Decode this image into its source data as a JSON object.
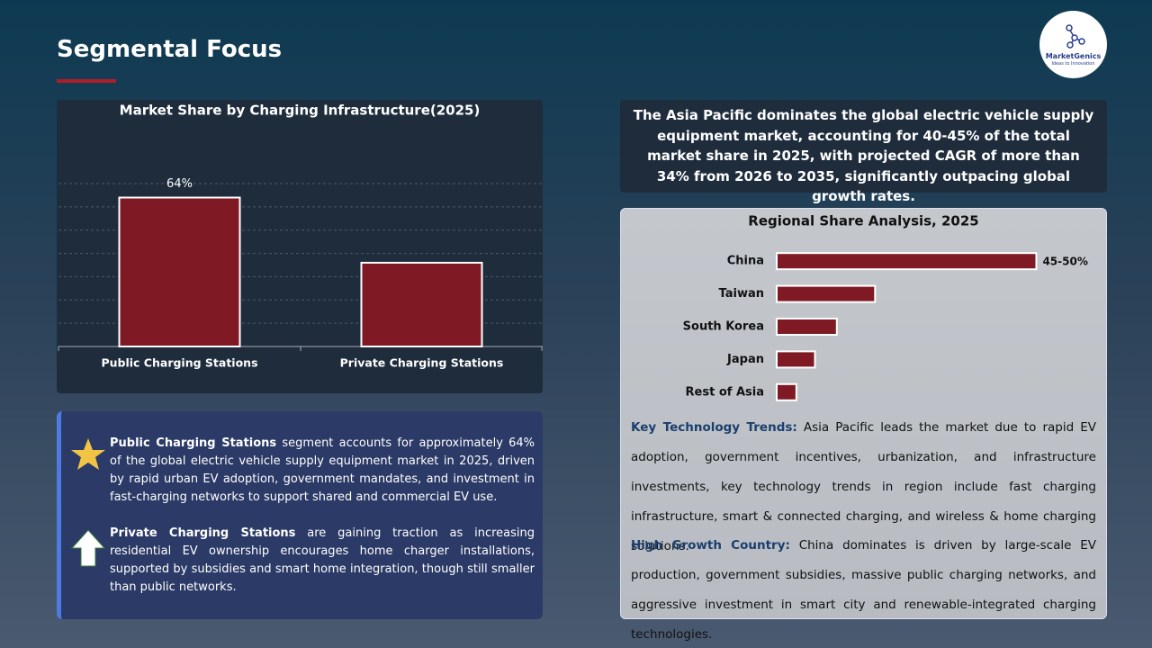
{
  "header": {
    "title": "Segmental Focus",
    "logo": {
      "name": "MarketGenics",
      "tagline": "Ideas to Innovation"
    }
  },
  "chart_data": [
    {
      "type": "bar",
      "title": "Market Share by Charging Infrastructure(2025)",
      "categories": [
        "Public Charging Stations",
        "Private Charging Stations"
      ],
      "values": [
        64,
        36
      ],
      "value_labels": [
        "64%",
        null
      ],
      "color": "#7f1a24",
      "ylim": [
        0,
        70
      ],
      "yticks": [
        0,
        10,
        20,
        30,
        40,
        50,
        60,
        70
      ],
      "grid": true
    },
    {
      "type": "bar",
      "horizontal": true,
      "title": "Regional Share Analysis, 2025",
      "categories": [
        "China",
        "Taiwan",
        "South Korea",
        "Japan",
        "Rest of Asia"
      ],
      "values": [
        47.5,
        18,
        11,
        7,
        3.6
      ],
      "value_labels": [
        "45-50%",
        null,
        null,
        null,
        null
      ],
      "color": "#7f1a24",
      "xlim": [
        0,
        55
      ],
      "grid": false
    }
  ],
  "summary": "The Asia Pacific dominates the global electric vehicle supply equipment market, accounting for 40-45% of the total market share in 2025, with projected CAGR of more than 34% from 2026 to 2035, significantly outpacing global growth rates.",
  "notes": [
    {
      "lead": "Public Charging Stations",
      "text": " segment accounts for approximately 64% of the global electric vehicle supply equipment market in 2025, driven by rapid urban EV adoption, government mandates, and investment in fast-charging networks to support shared and commercial EV use."
    },
    {
      "lead": "Private Charging Stations",
      "text": " are gaining traction as increasing residential EV ownership encourages home charger installations, supported by subsidies and smart home integration, though still smaller than public networks."
    }
  ],
  "insights": [
    {
      "lead": "Key Technology Trends:",
      "text": " Asia Pacific leads the market due to rapid EV adoption, government incentives, urbanization, and infrastructure investments, key technology trends in region include fast charging infrastructure, smart & connected charging, and wireless & home charging solutions."
    },
    {
      "lead": "High Growth Country:",
      "text": " China dominates is driven by large-scale EV production, government subsidies, massive public charging networks, and aggressive investment in smart city and renewable-integrated charging technologies."
    }
  ]
}
